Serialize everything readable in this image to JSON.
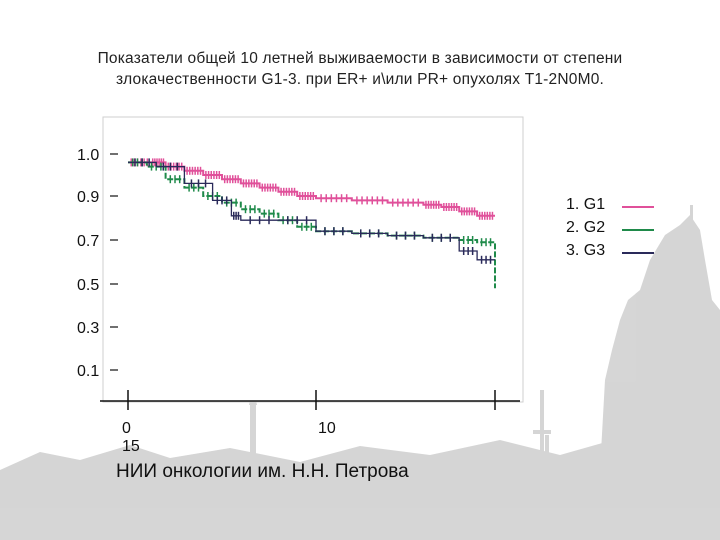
{
  "title_lines": [
    "Показатели общей 10 летней выживаемости в зависимости от степени",
    "злокачественности G1-3. при ER+ и\\или PR+ опухолях T1-2N0M0."
  ],
  "footer": "НИИ онкологии им. Н.Н. Петрова",
  "colors": {
    "G1": "#e0509a",
    "G2": "#1f8a4a",
    "G3": "#2a2a5a",
    "background_city": "#c4c4c4"
  },
  "chart_data": {
    "type": "line",
    "title": "Показатели общей 10 летней выживаемости в зависимости от степени злокачественности G1-3. при ER+ и\\или PR+ опухолях T1-2N0M0.",
    "xlabel": "",
    "ylabel": "",
    "y_ticks": [
      "1.0",
      "0.9",
      "0.7",
      "0.5",
      "0.3",
      "0.1"
    ],
    "y_tick_values": [
      1.0,
      0.9,
      0.7,
      0.5,
      0.3,
      0.1
    ],
    "x_ticks": [
      "0",
      "10",
      "15"
    ],
    "x_tick_values": [
      0,
      10,
      15
    ],
    "xlim": [
      0,
      15
    ],
    "ylim": [
      0.05,
      1.05
    ],
    "legend": [
      "1.  G1",
      "2.  G2",
      "3.  G3"
    ],
    "legend_position": "right",
    "series": [
      {
        "name": "G1",
        "x": [
          0,
          1.2,
          2,
          3,
          4,
          5,
          6,
          7,
          8,
          9,
          10,
          11,
          12,
          13,
          13.5,
          14,
          14.5,
          15
        ],
        "y": [
          0.98,
          0.98,
          0.97,
          0.96,
          0.95,
          0.94,
          0.93,
          0.92,
          0.91,
          0.9,
          0.89,
          0.88,
          0.87,
          0.86,
          0.85,
          0.83,
          0.81,
          0.81
        ]
      },
      {
        "name": "G2",
        "x": [
          0,
          1,
          2,
          3,
          4,
          5,
          6,
          7,
          8,
          9,
          10,
          11,
          12,
          13,
          14,
          14.5,
          15
        ],
        "y": [
          0.98,
          0.97,
          0.94,
          0.92,
          0.9,
          0.87,
          0.84,
          0.82,
          0.79,
          0.76,
          0.74,
          0.73,
          0.72,
          0.71,
          0.7,
          0.69,
          0.48
        ]
      },
      {
        "name": "G3",
        "x": [
          0,
          1.5,
          3,
          4.5,
          5.5,
          6,
          8,
          10,
          11,
          12,
          13,
          14,
          14.5,
          15
        ],
        "y": [
          0.98,
          0.97,
          0.93,
          0.88,
          0.81,
          0.79,
          0.79,
          0.74,
          0.73,
          0.72,
          0.71,
          0.65,
          0.61,
          0.61
        ]
      }
    ]
  }
}
